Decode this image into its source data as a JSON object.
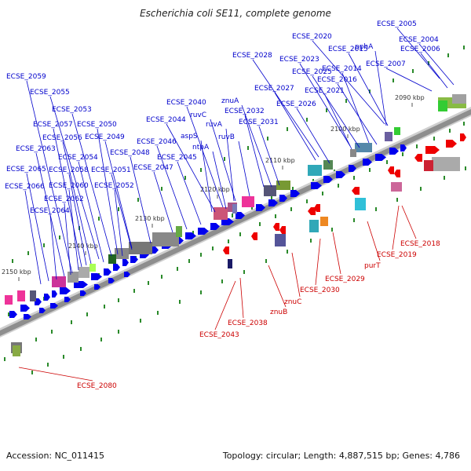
{
  "title": "Escherichia coli SE11, complete genome",
  "footer": {
    "accession": "Accession: NC_011415",
    "summary": "Topology: circular; Length: 4,887,515 bp; Genes: 4,786"
  },
  "colors": {
    "forward_gene": "#0000ee",
    "reverse_gene": "#ee0000",
    "forward_label": "#0000cc",
    "reverse_label": "#cc0000",
    "backbone": "#888888",
    "tick": "#2a8a2a"
  },
  "kbp_ticks": [
    "2090 kbp",
    "2100 kbp",
    "2110 kbp",
    "2120 kbp",
    "2130 kbp",
    "2140 kbp",
    "2150 kbp"
  ],
  "forward_labels": [
    "ECSE_2005",
    "ECSE_2004",
    "ECSE_2006",
    "ECSE_2007",
    "ECSE_2020",
    "ECSE_2015",
    "pphA",
    "ECSE_2028",
    "ECSE_2023",
    "ECSE_2014",
    "ECSE_2025",
    "ECSE_2016",
    "ECSE_2027",
    "ECSE_2021",
    "ECSE_2026",
    "znuA",
    "ECSE_2040",
    "ECSE_2032",
    "ruvC",
    "ECSE_2031",
    "ECSE_2044",
    "ruvA",
    "aspS",
    "ruvB",
    "ntpA",
    "ECSE_2046",
    "ECSE_2045",
    "ECSE_2047",
    "ECSE_2048",
    "ECSE_2049",
    "ECSE_2050",
    "ECSE_2051",
    "ECSE_2052",
    "ECSE_2053",
    "ECSE_2054",
    "ECSE_2055",
    "ECSE_2056",
    "ECSE_2057",
    "ECSE_2058",
    "ECSE_2059",
    "ECSE_2060",
    "ECSE_2062",
    "ECSE_2063",
    "ECSE_2064",
    "ECSE_2065",
    "ECSE_2066"
  ],
  "reverse_labels": [
    "ECSE_2018",
    "ECSE_2019",
    "purT",
    "ECSE_2029",
    "ECSE_2030",
    "znuC",
    "znuB",
    "ECSE_2038",
    "ECSE_2043",
    "ECSE_2080"
  ]
}
